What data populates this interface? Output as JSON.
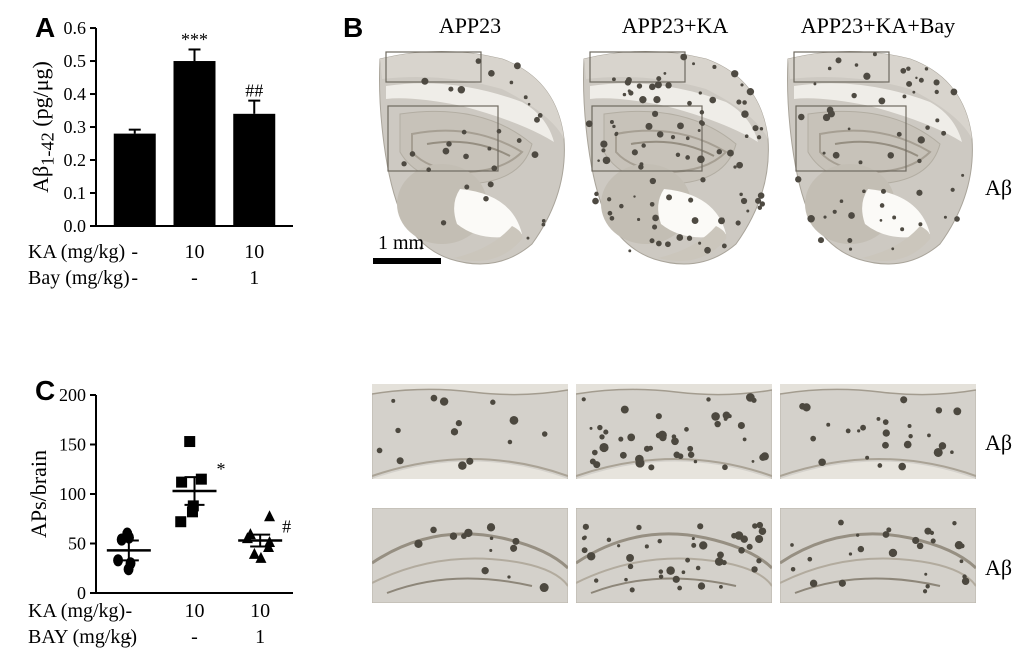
{
  "panelA": {
    "tag": "A",
    "ylabel_html": "Aβ<sub>1-42</sub> (pg/μg)",
    "ylim": [
      0,
      0.6001
    ],
    "ytick_step": 0.1,
    "bar_color": "#000000",
    "bg_color": "#ffffff",
    "bars": [
      {
        "value": 0.28,
        "err": 0.012,
        "sig": ""
      },
      {
        "value": 0.5,
        "err": 0.035,
        "sig": "***"
      },
      {
        "value": 0.34,
        "err": 0.04,
        "sig": "##"
      }
    ],
    "conditions": {
      "rows": [
        {
          "label": "KA (mg/kg)",
          "vals": [
            "-",
            "10",
            "10"
          ]
        },
        {
          "label": "Bay (mg/kg)",
          "vals": [
            "-",
            "-",
            "1"
          ]
        }
      ]
    }
  },
  "panelB": {
    "tag": "B",
    "col_headers": [
      "APP23",
      "APP23+KA",
      "APP23+KA+Bay"
    ],
    "row_label": "Aβ",
    "scalebar": "1 mm",
    "columns": [
      {
        "plaque_density": 0.25
      },
      {
        "plaque_density": 1.0
      },
      {
        "plaque_density": 0.55
      }
    ]
  },
  "panelC": {
    "tag": "C",
    "ylabel": "APs/brain",
    "ylim": [
      0,
      200.01
    ],
    "ytick_step": 50,
    "bg_color": "#ffffff",
    "groups": [
      {
        "marker": "circle",
        "mean": 43,
        "sem": 10,
        "sig": "",
        "points": [
          24,
          30,
          33,
          54,
          60,
          56
        ]
      },
      {
        "marker": "square",
        "mean": 103,
        "sem": 14,
        "sig": "*",
        "points": [
          72,
          82,
          88,
          112,
          115,
          153
        ]
      },
      {
        "marker": "triangle",
        "mean": 53,
        "sem": 6,
        "sig": "#",
        "points": [
          36,
          40,
          47,
          52,
          56,
          60,
          78
        ]
      }
    ],
    "conditions": {
      "rows": [
        {
          "label": "KA (mg/kg)",
          "vals": [
            "-",
            "10",
            "10"
          ]
        },
        {
          "label": "BAY (mg/kg)",
          "vals": [
            "-",
            "-",
            "1"
          ]
        }
      ]
    }
  },
  "style": {
    "axis_stroke": "#000000",
    "axis_width": 2,
    "error_cap_w": 7,
    "marker_size": 11,
    "sig_fontsize": 18
  }
}
